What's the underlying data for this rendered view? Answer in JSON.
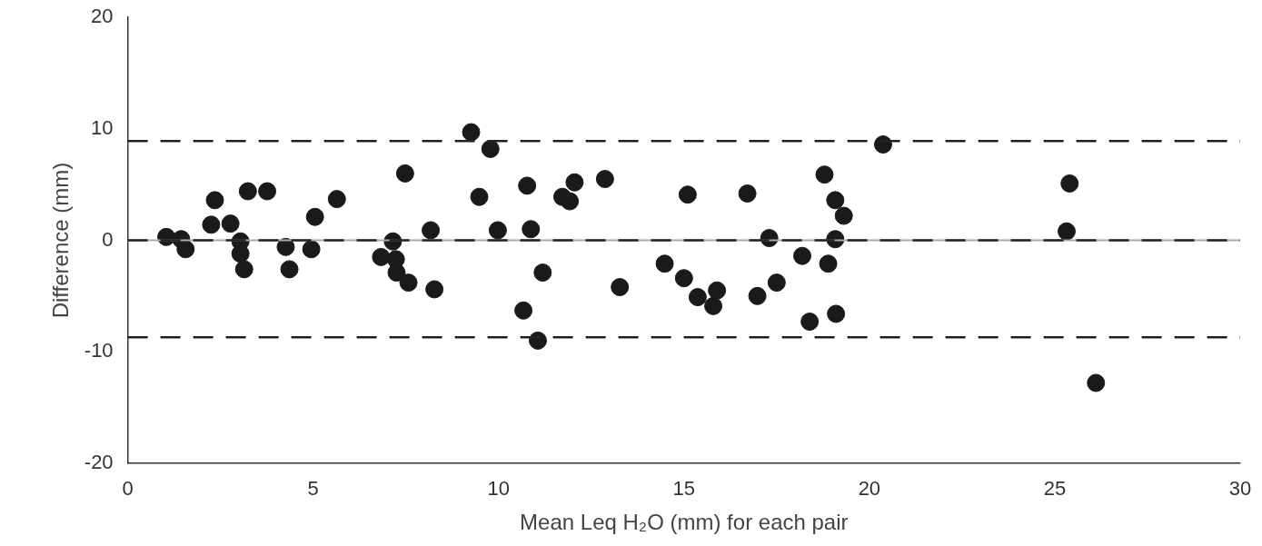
{
  "chart_data": {
    "type": "scatter",
    "xlabel": "Mean Leq H₂O (mm) for each pair",
    "ylabel": "Difference (mm)",
    "x": [
      1.04,
      1.44,
      1.56,
      2.35,
      2.25,
      2.77,
      3.04,
      3.04,
      3.14,
      3.24,
      3.76,
      4.26,
      4.36,
      4.95,
      5.05,
      5.64,
      6.83,
      7.15,
      7.23,
      7.25,
      7.57,
      7.48,
      8.17,
      8.27,
      9.26,
      9.48,
      9.78,
      9.98,
      10.67,
      10.77,
      10.87,
      11.06,
      11.19,
      11.72,
      11.92,
      12.05,
      12.87,
      13.27,
      14.48,
      15.0,
      15.1,
      15.37,
      15.79,
      15.89,
      16.71,
      16.98,
      17.3,
      17.5,
      18.19,
      18.39,
      18.79,
      18.89,
      19.08,
      19.08,
      19.1,
      19.31,
      20.37,
      25.32,
      25.4,
      26.11
    ],
    "series": [
      {
        "color": "#1a1a1a",
        "values": [
          0.3,
          0.1,
          -0.8,
          3.6,
          1.4,
          1.5,
          -0.1,
          -1.2,
          -2.6,
          4.4,
          4.4,
          -0.6,
          -2.6,
          -0.8,
          2.1,
          3.7,
          -1.5,
          -0.1,
          -1.7,
          -2.9,
          -3.8,
          6.0,
          0.9,
          -4.4,
          9.7,
          3.9,
          8.2,
          0.9,
          -6.3,
          4.9,
          1.0,
          -9.0,
          -2.9,
          3.9,
          3.5,
          5.2,
          5.5,
          -4.2,
          -2.1,
          -3.4,
          4.1,
          -5.1,
          -5.9,
          -4.5,
          4.2,
          -5.0,
          0.2,
          -3.8,
          -1.4,
          -7.3,
          5.9,
          -2.1,
          3.6,
          0.1,
          -6.6,
          2.2,
          8.6,
          0.8,
          5.1,
          -12.8
        ]
      }
    ],
    "xlim": [
      0,
      30
    ],
    "xticks": [
      0,
      5,
      10,
      15,
      20,
      25,
      30
    ],
    "ylim": [
      -20,
      20
    ],
    "yticks": [
      -20,
      -10,
      0,
      10,
      20
    ],
    "marker": "circle",
    "grid": false,
    "legend": false,
    "ref_lines": [
      {
        "axis": "y",
        "value": 8.9,
        "line_style": "dashed",
        "color": "#222222"
      },
      {
        "axis": "y",
        "value": 0,
        "line_style": "dashed",
        "color": "#222222"
      },
      {
        "axis": "y",
        "value": -8.7,
        "line_style": "dashed",
        "color": "#222222"
      }
    ]
  }
}
